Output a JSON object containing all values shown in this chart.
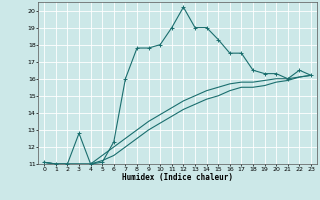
{
  "title": "",
  "xlabel": "Humidex (Indice chaleur)",
  "xlim": [
    -0.5,
    23.5
  ],
  "ylim": [
    11,
    20.5
  ],
  "xticks": [
    0,
    1,
    2,
    3,
    4,
    5,
    6,
    7,
    8,
    9,
    10,
    11,
    12,
    13,
    14,
    15,
    16,
    17,
    18,
    19,
    20,
    21,
    22,
    23
  ],
  "yticks": [
    11,
    12,
    13,
    14,
    15,
    16,
    17,
    18,
    19,
    20
  ],
  "bg_color": "#cce8e8",
  "grid_color": "#ffffff",
  "line_color": "#1a6e6e",
  "series": [
    {
      "x": [
        0,
        1,
        2,
        3,
        4,
        5,
        6,
        7,
        8,
        9,
        10,
        11,
        12,
        13,
        14,
        15,
        16,
        17,
        18,
        19,
        20,
        21,
        22,
        23
      ],
      "y": [
        11.1,
        11.0,
        11.0,
        12.8,
        11.0,
        11.1,
        12.3,
        16.0,
        17.8,
        17.8,
        18.0,
        19.0,
        20.2,
        19.0,
        19.0,
        18.3,
        17.5,
        17.5,
        16.5,
        16.3,
        16.3,
        16.0,
        16.5,
        16.2
      ],
      "marker": "+"
    },
    {
      "x": [
        0,
        1,
        2,
        3,
        4,
        5,
        6,
        7,
        8,
        9,
        10,
        11,
        12,
        13,
        14,
        15,
        16,
        17,
        18,
        19,
        20,
        21,
        22,
        23
      ],
      "y": [
        11.1,
        11.0,
        11.0,
        11.0,
        11.0,
        11.5,
        12.0,
        12.5,
        13.0,
        13.5,
        13.9,
        14.3,
        14.7,
        15.0,
        15.3,
        15.5,
        15.7,
        15.8,
        15.8,
        15.9,
        16.0,
        16.0,
        16.1,
        16.2
      ],
      "marker": null
    },
    {
      "x": [
        0,
        1,
        2,
        3,
        4,
        5,
        6,
        7,
        8,
        9,
        10,
        11,
        12,
        13,
        14,
        15,
        16,
        17,
        18,
        19,
        20,
        21,
        22,
        23
      ],
      "y": [
        11.1,
        11.0,
        11.0,
        11.0,
        11.0,
        11.2,
        11.5,
        12.0,
        12.5,
        13.0,
        13.4,
        13.8,
        14.2,
        14.5,
        14.8,
        15.0,
        15.3,
        15.5,
        15.5,
        15.6,
        15.8,
        15.9,
        16.1,
        16.2
      ],
      "marker": null
    }
  ]
}
